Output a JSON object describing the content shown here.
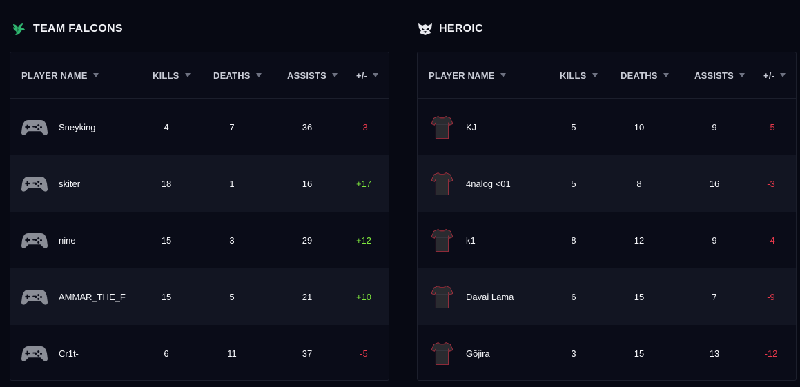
{
  "teams": [
    {
      "name": "TEAM FALCONS",
      "logo_icon": "falcon-logo-icon",
      "columns": [
        "PLAYER NAME",
        "KILLS",
        "DEATHS",
        "ASSISTS",
        "+/-"
      ],
      "players": [
        {
          "name": "Sneyking",
          "kills": "4",
          "deaths": "7",
          "assists": "36",
          "diff": "-3",
          "avatar": "gamepad-icon"
        },
        {
          "name": "skiter",
          "kills": "18",
          "deaths": "1",
          "assists": "16",
          "diff": "+17",
          "avatar": "gamepad-icon"
        },
        {
          "name": "nine",
          "kills": "15",
          "deaths": "3",
          "assists": "29",
          "diff": "+12",
          "avatar": "gamepad-icon"
        },
        {
          "name": "AMMAR_THE_F",
          "kills": "15",
          "deaths": "5",
          "assists": "21",
          "diff": "+10",
          "avatar": "gamepad-icon"
        },
        {
          "name": "Cr1t-",
          "kills": "6",
          "deaths": "11",
          "assists": "37",
          "diff": "-5",
          "avatar": "gamepad-icon"
        }
      ]
    },
    {
      "name": "HEROIC",
      "logo_icon": "heroic-logo-icon",
      "columns": [
        "PLAYER NAME",
        "KILLS",
        "DEATHS",
        "ASSISTS",
        "+/-"
      ],
      "players": [
        {
          "name": "KJ",
          "kills": "5",
          "deaths": "10",
          "assists": "9",
          "diff": "-5",
          "avatar": "jersey-icon"
        },
        {
          "name": "4nalog <01",
          "kills": "5",
          "deaths": "8",
          "assists": "16",
          "diff": "-3",
          "avatar": "jersey-icon"
        },
        {
          "name": "k1",
          "kills": "8",
          "deaths": "12",
          "assists": "9",
          "diff": "-4",
          "avatar": "jersey-icon"
        },
        {
          "name": "Davai Lama",
          "kills": "6",
          "deaths": "15",
          "assists": "7",
          "diff": "-9",
          "avatar": "jersey-icon"
        },
        {
          "name": "Gōjira",
          "kills": "3",
          "deaths": "15",
          "assists": "13",
          "diff": "-12",
          "avatar": "jersey-icon"
        }
      ]
    }
  ],
  "colors": {
    "background": "#070913",
    "panel": "#0a0c18",
    "row_alt": "#121522",
    "positive": "#7ee83d",
    "negative": "#e8394b",
    "falcons_brand": "#2fb36e"
  }
}
